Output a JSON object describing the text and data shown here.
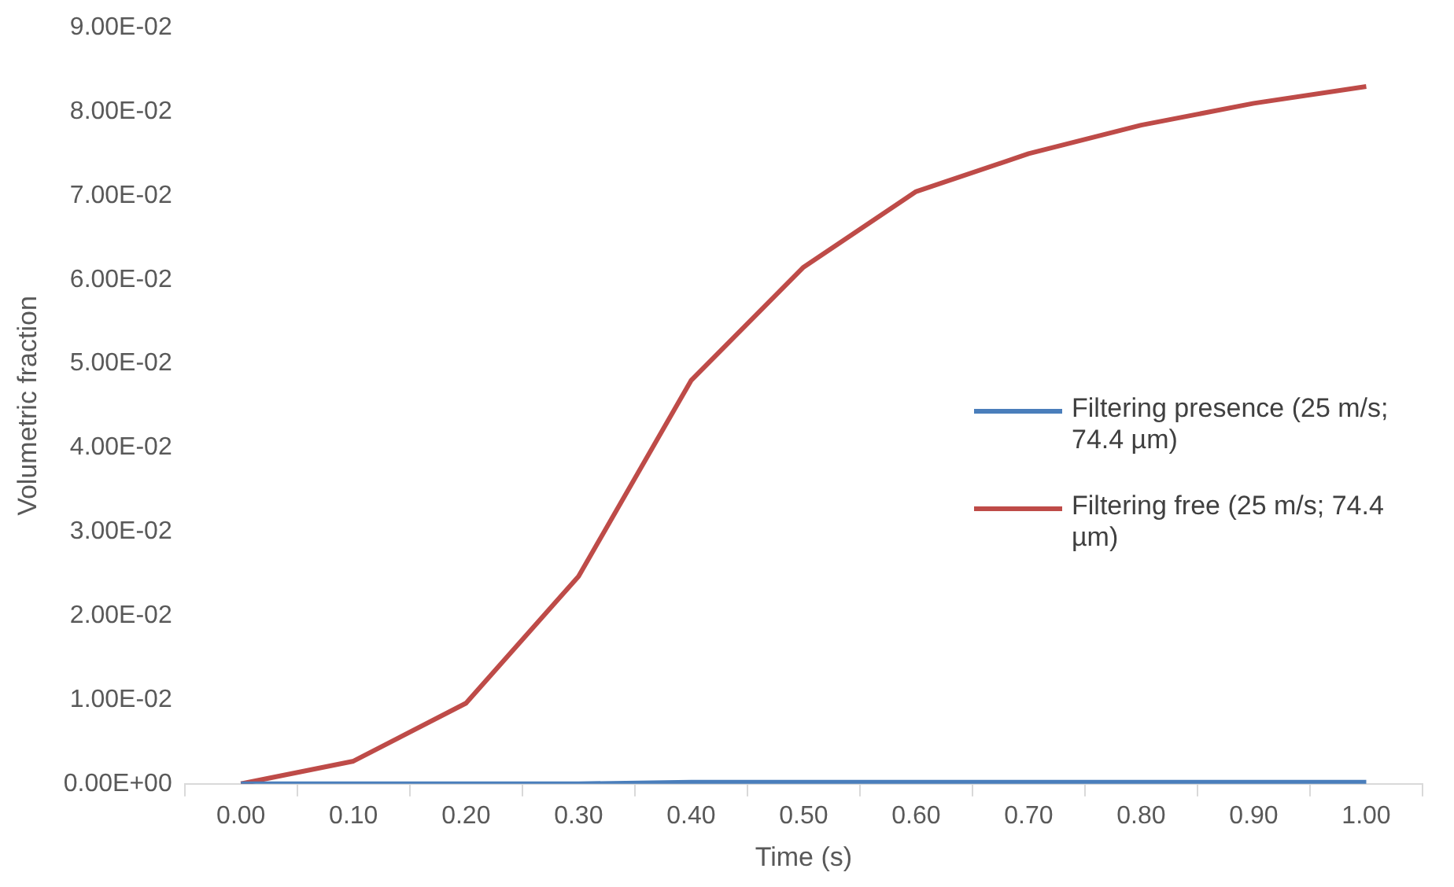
{
  "chart_data": {
    "type": "line",
    "xlabel": "Time (s)",
    "ylabel": "Volumetric fraction",
    "categories": [
      "0.00",
      "0.10",
      "0.20",
      "0.30",
      "0.40",
      "0.50",
      "0.60",
      "0.70",
      "0.80",
      "0.90",
      "1.00"
    ],
    "series": [
      {
        "name": "Filtering presence (25 m/s; 74.4 µm)",
        "color": "#4a7ebb",
        "values": [
          0,
          0,
          0,
          0,
          0.0002,
          0.0002,
          0.0002,
          0.0002,
          0.0002,
          0.0002,
          0.0002
        ]
      },
      {
        "name": "Filtering free (25 m/s; 74.4 µm)",
        "color": "#be4b48",
        "values": [
          0,
          0.0027,
          0.0096,
          0.0247,
          0.048,
          0.0615,
          0.0705,
          0.075,
          0.0784,
          0.081,
          0.083
        ]
      }
    ],
    "ylim": [
      0,
      0.09
    ],
    "yticks": [
      {
        "value": 0,
        "label": "0.00E+00"
      },
      {
        "value": 0.01,
        "label": "1.00E-02"
      },
      {
        "value": 0.02,
        "label": "2.00E-02"
      },
      {
        "value": 0.03,
        "label": "3.00E-02"
      },
      {
        "value": 0.04,
        "label": "4.00E-02"
      },
      {
        "value": 0.05,
        "label": "5.00E-02"
      },
      {
        "value": 0.06,
        "label": "6.00E-02"
      },
      {
        "value": 0.07,
        "label": "7.00E-02"
      },
      {
        "value": 0.08,
        "label": "8.00E-02"
      },
      {
        "value": 0.09,
        "label": "9.00E-02"
      }
    ],
    "grid": false,
    "legend": "right",
    "marker": "none",
    "line_style": "solid"
  }
}
